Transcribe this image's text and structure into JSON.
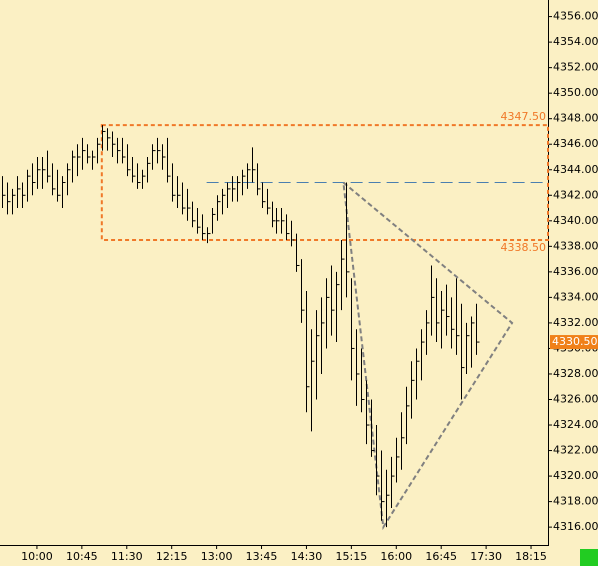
{
  "chart_data": {
    "type": "hlc",
    "x": [
      "09:25",
      "09:30",
      "09:35",
      "09:40",
      "09:45",
      "09:50",
      "09:55",
      "10:00",
      "10:05",
      "10:10",
      "10:15",
      "10:20",
      "10:25",
      "10:30",
      "10:35",
      "10:40",
      "10:45",
      "10:50",
      "10:55",
      "11:00",
      "11:05",
      "11:10",
      "11:15",
      "11:20",
      "11:25",
      "11:30",
      "11:35",
      "11:40",
      "11:45",
      "11:50",
      "11:55",
      "12:00",
      "12:05",
      "12:10",
      "12:15",
      "12:20",
      "12:25",
      "12:30",
      "12:35",
      "12:40",
      "12:45",
      "12:50",
      "12:55",
      "13:00",
      "13:05",
      "13:10",
      "13:15",
      "13:20",
      "13:25",
      "13:30",
      "13:35",
      "13:40",
      "13:45",
      "13:50",
      "13:55",
      "14:00",
      "14:05",
      "14:10",
      "14:15",
      "14:20",
      "14:25",
      "14:30",
      "14:35",
      "14:40",
      "14:45",
      "14:50",
      "14:55",
      "15:00",
      "15:05",
      "15:10",
      "15:15",
      "15:20",
      "15:25",
      "15:30",
      "15:35",
      "15:40",
      "15:45",
      "15:50",
      "15:55",
      "16:00",
      "16:05",
      "16:10",
      "16:15",
      "16:20",
      "16:25",
      "16:30",
      "16:35",
      "16:40",
      "16:45",
      "16:50",
      "16:55",
      "17:00",
      "17:05",
      "17:10",
      "17:15",
      "17:20"
    ],
    "high": [
      4343.5,
      4343,
      4342.5,
      4343.5,
      4343,
      4344,
      4344.5,
      4345,
      4345,
      4345.5,
      4344.5,
      4344,
      4343.5,
      4344.5,
      4345.5,
      4346,
      4346.5,
      4346,
      4345.5,
      4346.5,
      4347.5,
      4347.25,
      4347,
      4346.5,
      4346.5,
      4346,
      4345,
      4344.5,
      4344,
      4345,
      4346,
      4346.5,
      4346,
      4346.5,
      4344.5,
      4343.5,
      4343,
      4342.5,
      4341.5,
      4341,
      4340.5,
      4339.5,
      4341,
      4342,
      4342.5,
      4343,
      4343.5,
      4343.5,
      4344,
      4344.5,
      4345.75,
      4344.5,
      4343,
      4342.5,
      4341.5,
      4341,
      4341,
      4340.5,
      4340,
      4339,
      4337,
      4334.5,
      4331.5,
      4333,
      4334,
      4335.5,
      4336.5,
      4336,
      4338.5,
      4343,
      4335.5,
      4331.5,
      4330,
      4327.5,
      4326,
      4324,
      4322,
      4320.5,
      4321.5,
      4323,
      4325,
      4327,
      4329,
      4330,
      4331.5,
      4333,
      4336.5,
      4335.5,
      4334.5,
      4335,
      4334,
      4335.5,
      4333.5,
      4332,
      4332.5,
      4333.5
    ],
    "low": [
      4341,
      4340.5,
      4340.5,
      4341,
      4341,
      4341.5,
      4342,
      4342.5,
      4342.5,
      4343,
      4342,
      4341.5,
      4341,
      4342,
      4343,
      4343.5,
      4344,
      4344.5,
      4344,
      4344.5,
      4345.5,
      4345.5,
      4345,
      4344.5,
      4344.5,
      4343.5,
      4343,
      4342.5,
      4342.5,
      4343,
      4344,
      4344.5,
      4344,
      4343,
      4341.5,
      4341,
      4340.5,
      4340,
      4339.5,
      4339,
      4338.5,
      4338.25,
      4339,
      4340,
      4340.5,
      4341,
      4341.5,
      4341.5,
      4342,
      4342.5,
      4343,
      4342,
      4341,
      4340.5,
      4339.5,
      4339,
      4339,
      4338.5,
      4338,
      4336,
      4332,
      4325,
      4323.5,
      4326,
      4328,
      4330,
      4331,
      4330.5,
      4333,
      4334,
      4327.5,
      4325.5,
      4325,
      4322.5,
      4321.5,
      4318.5,
      4316.5,
      4316,
      4317.5,
      4319.5,
      4320.5,
      4322.5,
      4324.5,
      4326,
      4327.5,
      4329.5,
      4331,
      4330.5,
      4330,
      4331,
      4330,
      4329.5,
      4326,
      4328,
      4328.5,
      4329.5
    ],
    "close": [
      4342,
      4341.5,
      4342,
      4342.5,
      4342,
      4343.5,
      4343,
      4344,
      4344,
      4343.5,
      4342.5,
      4342,
      4343,
      4344,
      4345,
      4345,
      4345.5,
      4345,
      4345,
      4346,
      4347,
      4346.5,
      4346,
      4345.5,
      4345,
      4344,
      4343.5,
      4343,
      4343.5,
      4344.5,
      4345.5,
      4345.5,
      4345,
      4343.5,
      4342,
      4342,
      4341,
      4341,
      4340,
      4339.5,
      4339,
      4339,
      4340.5,
      4341.5,
      4342,
      4342.5,
      4342.5,
      4343,
      4343.5,
      4344,
      4344,
      4342.5,
      4341.5,
      4341,
      4340,
      4340,
      4340,
      4339,
      4338.5,
      4336.5,
      4333,
      4327,
      4329,
      4331,
      4332,
      4334,
      4333,
      4335,
      4337,
      4336,
      4330,
      4328,
      4326,
      4324,
      4322,
      4320,
      4318,
      4318.5,
      4320,
      4321.5,
      4323,
      4325.5,
      4327.5,
      4329,
      4330.5,
      4332,
      4334,
      4332,
      4333,
      4332.5,
      4331.5,
      4331,
      4328.5,
      4331,
      4332,
      4330.5
    ],
    "color": "#000000",
    "xlim": [
      "09:23",
      "18:32"
    ],
    "xticks": [
      "10:00",
      "10:45",
      "11:30",
      "12:15",
      "13:00",
      "13:45",
      "14:30",
      "15:15",
      "16:00",
      "16:45",
      "17:30",
      "18:15"
    ],
    "ylim": [
      4314.6,
      4357.3
    ],
    "yticks": [
      {
        "value": 4316,
        "label": "4316.00"
      },
      {
        "value": 4318,
        "label": "4318.00"
      },
      {
        "value": 4320,
        "label": "4320.00"
      },
      {
        "value": 4322,
        "label": "4322.00"
      },
      {
        "value": 4324,
        "label": "4324.00"
      },
      {
        "value": 4326,
        "label": "4326.00"
      },
      {
        "value": 4328,
        "label": "4328.00"
      },
      {
        "value": 4330,
        "label": "4330.00"
      },
      {
        "value": 4332,
        "label": "4332.00"
      },
      {
        "value": 4334,
        "label": "4334.00"
      },
      {
        "value": 4336,
        "label": "4336.00"
      },
      {
        "value": 4338,
        "label": "4338.00"
      },
      {
        "value": 4340,
        "label": "4340.00"
      },
      {
        "value": 4342,
        "label": "4342.00"
      },
      {
        "value": 4344,
        "label": "4344.00"
      },
      {
        "value": 4346,
        "label": "4346.00"
      },
      {
        "value": 4348,
        "label": "4348.00"
      },
      {
        "value": 4350,
        "label": "4350.00"
      },
      {
        "value": 4352,
        "label": "4352.00"
      },
      {
        "value": 4354,
        "label": "4354.00"
      },
      {
        "value": 4356,
        "label": "4356.00"
      }
    ],
    "zone": {
      "start": "11:05",
      "top": {
        "value": 4347.5,
        "label": "4347.50"
      },
      "bottom": {
        "value": 4338.5,
        "label": "4338.50"
      },
      "color": "#f07828"
    },
    "level": {
      "start": "12:50",
      "value": 4343,
      "color": "#4a7fb0"
    },
    "triangle": {
      "color": "#808080",
      "points": [
        {
          "x": "15:07",
          "y": 4343
        },
        {
          "x": "17:56",
          "y": 4332
        },
        {
          "x": "15:47",
          "y": 4316
        }
      ]
    },
    "last_price": {
      "value": 4330.5,
      "label": "4330.50",
      "color": "#f08018"
    }
  }
}
